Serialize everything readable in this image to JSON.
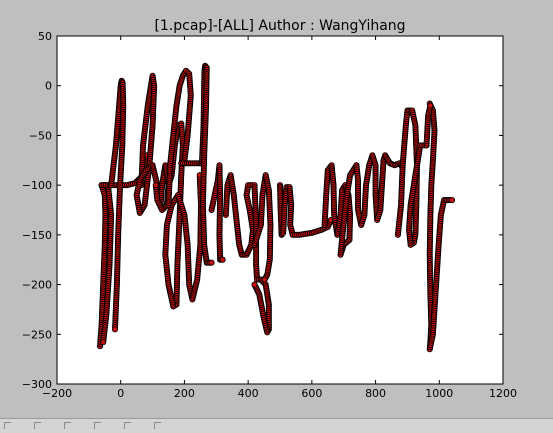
{
  "chart_data": {
    "type": "scatter",
    "title": "[1.pcap]-[ALL] Author : WangYihang",
    "xlabel": "",
    "ylabel": "",
    "xlim": [
      -200,
      1200
    ],
    "ylim": [
      -300,
      50
    ],
    "xticks": [
      -200,
      0,
      200,
      400,
      600,
      800,
      1000,
      1200
    ],
    "yticks": [
      -300,
      -250,
      -200,
      -150,
      -100,
      -50,
      0,
      50
    ],
    "xtick_labels": [
      "−200",
      "0",
      "200",
      "400",
      "600",
      "800",
      "1000",
      "1200"
    ],
    "ytick_labels": [
      "−300",
      "−250",
      "−200",
      "−150",
      "−100",
      "−50",
      "0",
      "50"
    ],
    "grid": false,
    "colors": {
      "marker_face": "#cc1111",
      "marker_edge": "#000000",
      "plot_bg": "#ffffff",
      "figure_bg": "#bfbfbf"
    },
    "strokes": [
      [
        [
          -65,
          -262
        ],
        [
          -60,
          -240
        ],
        [
          -55,
          -200
        ],
        [
          -50,
          -160
        ],
        [
          -48,
          -130
        ],
        [
          -50,
          -110
        ],
        [
          -60,
          -100
        ],
        [
          -40,
          -100
        ],
        [
          -30,
          -130
        ],
        [
          -35,
          -180
        ],
        [
          -45,
          -230
        ],
        [
          -55,
          -258
        ]
      ],
      [
        [
          -60,
          -100
        ],
        [
          -20,
          -100
        ],
        [
          20,
          -100
        ],
        [
          45,
          -98
        ],
        [
          70,
          -90
        ],
        [
          80,
          -70
        ]
      ],
      [
        [
          -30,
          -100
        ],
        [
          -15,
          -60
        ],
        [
          -5,
          -20
        ],
        [
          0,
          0
        ],
        [
          3,
          5
        ],
        [
          6,
          3
        ],
        [
          8,
          -20
        ],
        [
          5,
          -60
        ],
        [
          -2,
          -100
        ],
        [
          -8,
          -150
        ],
        [
          -12,
          -200
        ],
        [
          -18,
          -245
        ]
      ],
      [
        [
          65,
          -100
        ],
        [
          70,
          -60
        ],
        [
          85,
          -20
        ],
        [
          95,
          0
        ],
        [
          100,
          10
        ],
        [
          105,
          0
        ],
        [
          100,
          -40
        ],
        [
          90,
          -80
        ],
        [
          75,
          -120
        ],
        [
          60,
          -128
        ],
        [
          50,
          -110
        ],
        [
          60,
          -95
        ],
        [
          80,
          -85
        ],
        [
          100,
          -80
        ]
      ],
      [
        [
          100,
          -80
        ],
        [
          115,
          -100
        ],
        [
          125,
          -120
        ],
        [
          130,
          -100
        ],
        [
          140,
          -80
        ],
        [
          150,
          -100
        ],
        [
          145,
          -120
        ],
        [
          130,
          -125
        ],
        [
          115,
          -115
        ],
        [
          110,
          -100
        ]
      ],
      [
        [
          150,
          -100
        ],
        [
          160,
          -90
        ],
        [
          170,
          -60
        ],
        [
          180,
          -40
        ],
        [
          190,
          -38
        ],
        [
          195,
          -60
        ],
        [
          190,
          -90
        ],
        [
          185,
          -130
        ],
        [
          178,
          -180
        ],
        [
          175,
          -220
        ],
        [
          165,
          -222
        ],
        [
          150,
          -200
        ],
        [
          140,
          -170
        ],
        [
          145,
          -140
        ],
        [
          160,
          -120
        ],
        [
          180,
          -110
        ],
        [
          200,
          -130
        ],
        [
          210,
          -160
        ],
        [
          215,
          -200
        ],
        [
          225,
          -215
        ],
        [
          240,
          -195
        ],
        [
          250,
          -160
        ],
        [
          252,
          -120
        ],
        [
          248,
          -90
        ]
      ],
      [
        [
          150,
          -120
        ],
        [
          155,
          -80
        ],
        [
          165,
          -50
        ],
        [
          175,
          -20
        ],
        [
          185,
          0
        ],
        [
          195,
          10
        ],
        [
          205,
          15
        ],
        [
          215,
          12
        ],
        [
          220,
          -10
        ],
        [
          210,
          -50
        ],
        [
          200,
          -75
        ],
        [
          190,
          -78
        ],
        [
          220,
          -78
        ],
        [
          245,
          -78
        ],
        [
          260,
          -78
        ]
      ],
      [
        [
          255,
          -78
        ],
        [
          260,
          -40
        ],
        [
          262,
          0
        ],
        [
          263,
          15
        ],
        [
          265,
          20
        ],
        [
          270,
          18
        ],
        [
          268,
          -20
        ],
        [
          262,
          -70
        ],
        [
          258,
          -120
        ],
        [
          262,
          -160
        ],
        [
          270,
          -178
        ],
        [
          285,
          -178
        ]
      ],
      [
        [
          285,
          -125
        ],
        [
          295,
          -110
        ],
        [
          305,
          -95
        ],
        [
          310,
          -80
        ],
        [
          312,
          -110
        ],
        [
          310,
          -150
        ],
        [
          312,
          -175
        ],
        [
          320,
          -175
        ]
      ],
      [
        [
          330,
          -130
        ],
        [
          335,
          -100
        ],
        [
          345,
          -90
        ],
        [
          355,
          -110
        ],
        [
          365,
          -140
        ],
        [
          372,
          -160
        ],
        [
          380,
          -170
        ],
        [
          395,
          -170
        ],
        [
          410,
          -160
        ],
        [
          415,
          -145
        ],
        [
          405,
          -125
        ],
        [
          395,
          -110
        ],
        [
          400,
          -100
        ],
        [
          420,
          -100
        ],
        [
          425,
          -140
        ],
        [
          425,
          -180
        ],
        [
          428,
          -195
        ],
        [
          440,
          -195
        ],
        [
          455,
          -200
        ],
        [
          465,
          -220
        ],
        [
          465,
          -245
        ],
        [
          460,
          -248
        ],
        [
          450,
          -235
        ],
        [
          435,
          -210
        ],
        [
          420,
          -200
        ]
      ],
      [
        [
          420,
          -160
        ],
        [
          430,
          -150
        ],
        [
          440,
          -140
        ],
        [
          445,
          -110
        ],
        [
          455,
          -90
        ],
        [
          465,
          -105
        ],
        [
          470,
          -140
        ],
        [
          468,
          -175
        ],
        [
          460,
          -190
        ],
        [
          452,
          -195
        ]
      ],
      [
        [
          500,
          -100
        ],
        [
          502,
          -125
        ],
        [
          505,
          -150
        ],
        [
          510,
          -148
        ],
        [
          515,
          -120
        ],
        [
          520,
          -102
        ],
        [
          530,
          -102
        ],
        [
          535,
          -120
        ],
        [
          532,
          -140
        ],
        [
          540,
          -150
        ],
        [
          560,
          -150
        ],
        [
          600,
          -148
        ],
        [
          630,
          -145
        ],
        [
          650,
          -142
        ],
        [
          660,
          -135
        ]
      ],
      [
        [
          640,
          -140
        ],
        [
          645,
          -110
        ],
        [
          650,
          -85
        ],
        [
          662,
          -80
        ],
        [
          668,
          -100
        ],
        [
          670,
          -130
        ],
        [
          680,
          -150
        ],
        [
          690,
          -130
        ],
        [
          695,
          -105
        ],
        [
          705,
          -100
        ],
        [
          715,
          -110
        ],
        [
          720,
          -130
        ],
        [
          718,
          -155
        ],
        [
          700,
          -160
        ],
        [
          690,
          -170
        ],
        [
          700,
          -138
        ],
        [
          710,
          -110
        ],
        [
          720,
          -90
        ],
        [
          740,
          -80
        ]
      ],
      [
        [
          740,
          -80
        ],
        [
          745,
          -95
        ],
        [
          745,
          -125
        ],
        [
          755,
          -140
        ],
        [
          765,
          -130
        ],
        [
          770,
          -100
        ],
        [
          780,
          -80
        ],
        [
          790,
          -70
        ],
        [
          800,
          -80
        ],
        [
          800,
          -110
        ],
        [
          805,
          -135
        ],
        [
          815,
          -125
        ],
        [
          820,
          -100
        ],
        [
          825,
          -75
        ],
        [
          830,
          -70
        ],
        [
          845,
          -78
        ],
        [
          860,
          -80
        ],
        [
          875,
          -78
        ],
        [
          885,
          -82
        ]
      ],
      [
        [
          870,
          -150
        ],
        [
          880,
          -120
        ],
        [
          885,
          -80
        ],
        [
          890,
          -60
        ],
        [
          895,
          -40
        ],
        [
          900,
          -25
        ],
        [
          915,
          -25
        ],
        [
          925,
          -40
        ],
        [
          930,
          -80
        ],
        [
          928,
          -120
        ],
        [
          925,
          -150
        ],
        [
          920,
          -158
        ],
        [
          910,
          -160
        ],
        [
          905,
          -145
        ],
        [
          910,
          -120
        ],
        [
          920,
          -100
        ],
        [
          930,
          -80
        ],
        [
          940,
          -60
        ],
        [
          960,
          -60
        ]
      ],
      [
        [
          970,
          -18
        ],
        [
          980,
          -25
        ],
        [
          985,
          -45
        ],
        [
          980,
          -75
        ],
        [
          975,
          -100
        ],
        [
          972,
          -130
        ],
        [
          970,
          -170
        ],
        [
          972,
          -210
        ],
        [
          975,
          -240
        ],
        [
          972,
          -258
        ],
        [
          970,
          -265
        ],
        [
          980,
          -250
        ],
        [
          990,
          -200
        ],
        [
          998,
          -160
        ],
        [
          1005,
          -130
        ],
        [
          1015,
          -115
        ],
        [
          1030,
          -115
        ],
        [
          1040,
          -115
        ]
      ],
      [
        [
          960,
          -60
        ],
        [
          965,
          -30
        ],
        [
          972,
          -20
        ]
      ]
    ]
  }
}
